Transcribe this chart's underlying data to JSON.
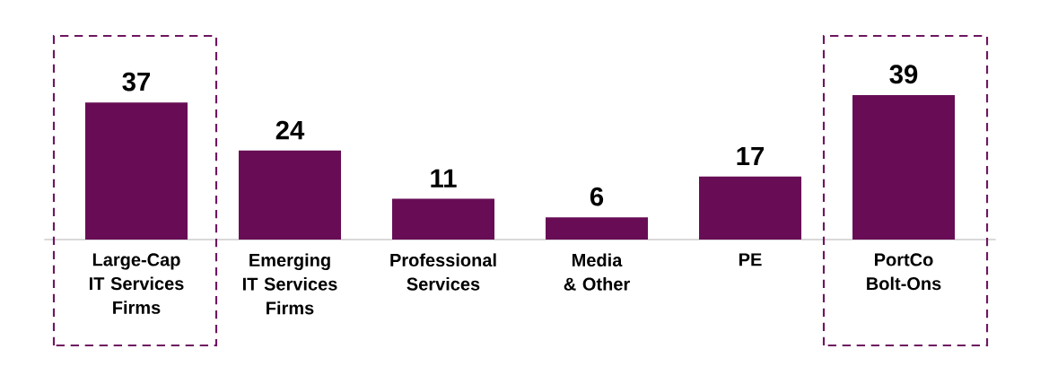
{
  "chart_data": {
    "type": "bar",
    "categories": [
      "Large-Cap IT Services Firms",
      "Emerging IT Services Firms",
      "Professional Services",
      "Media & Other",
      "PE",
      "PortCo Bolt-Ons"
    ],
    "values": [
      37,
      24,
      11,
      6,
      17,
      39
    ],
    "color": "#680d55",
    "data_labels": true
  }
}
